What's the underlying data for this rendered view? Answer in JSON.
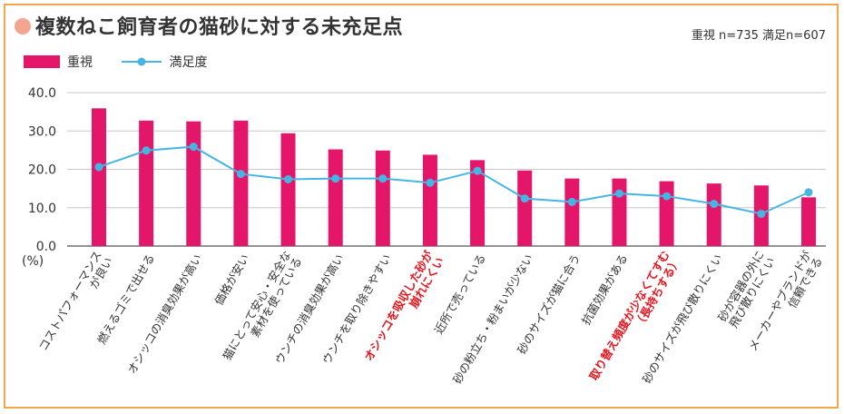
{
  "title": "複数ねこ飼育者の猫砂に対する未充足点",
  "sample_note": "重視 n=735 満足n=607",
  "colors": {
    "bar": "#e3166a",
    "line": "#45b6e4",
    "title_dot": "#f4a58f",
    "frame": "#f0a64a",
    "highlight_text": "#e3161f",
    "normal_text": "#333333"
  },
  "chart_data": {
    "type": "bar",
    "title": "複数ねこ飼育者の猫砂に対する未充足点",
    "y_unit_label": "(%)",
    "ylim": [
      0,
      40
    ],
    "yticks": [
      "40.0",
      "30.0",
      "20.0",
      "10.0",
      "0.0"
    ],
    "ytick_values": [
      40,
      30,
      20,
      10,
      0
    ],
    "grid": true,
    "legend": {
      "placement": "top-left",
      "entries": [
        "重視",
        "満足度"
      ]
    },
    "categories": [
      {
        "lines": [
          "コストパフォーマンス",
          "が良い"
        ],
        "highlight": false
      },
      {
        "lines": [
          "燃えるゴミで出せる"
        ],
        "highlight": false
      },
      {
        "lines": [
          "オシッコの消臭効果が高い"
        ],
        "highlight": false
      },
      {
        "lines": [
          "価格が安い"
        ],
        "highlight": false
      },
      {
        "lines": [
          "猫にとって安心・安全な",
          "素材を使っている"
        ],
        "highlight": false
      },
      {
        "lines": [
          "ウンチの消臭効果が高い"
        ],
        "highlight": false
      },
      {
        "lines": [
          "ウンチを取り除きやすい"
        ],
        "highlight": false
      },
      {
        "lines": [
          "オシッコを吸収した砂が",
          "崩れにくい"
        ],
        "highlight": true
      },
      {
        "lines": [
          "近所で売っている"
        ],
        "highlight": false
      },
      {
        "lines": [
          "砂の粉立ち・粉まいが少ない"
        ],
        "highlight": false
      },
      {
        "lines": [
          "砂のサイズが猫に合う"
        ],
        "highlight": false
      },
      {
        "lines": [
          "抗菌効果がある"
        ],
        "highlight": false
      },
      {
        "lines": [
          "取り替え頻度が少なくてすむ",
          "（長持ちする）"
        ],
        "highlight": true
      },
      {
        "lines": [
          "砂のサイズが飛び散りにくい"
        ],
        "highlight": false
      },
      {
        "lines": [
          "砂が容器の外に",
          "飛び散りにくい"
        ],
        "highlight": false
      },
      {
        "lines": [
          "メーカーやブランドが",
          "信頼できる"
        ],
        "highlight": false
      }
    ],
    "series": [
      {
        "name": "重視",
        "type": "bar",
        "values": [
          35.9,
          32.7,
          32.5,
          32.7,
          29.4,
          25.2,
          24.9,
          23.8,
          22.4,
          19.7,
          17.6,
          17.6,
          16.9,
          16.3,
          15.8,
          12.7
        ]
      },
      {
        "name": "満足度",
        "type": "line",
        "values": [
          20.6,
          24.9,
          25.9,
          18.8,
          17.4,
          17.6,
          17.6,
          16.5,
          19.6,
          12.4,
          11.5,
          13.7,
          13.0,
          11.0,
          8.4,
          14.0
        ]
      }
    ]
  }
}
